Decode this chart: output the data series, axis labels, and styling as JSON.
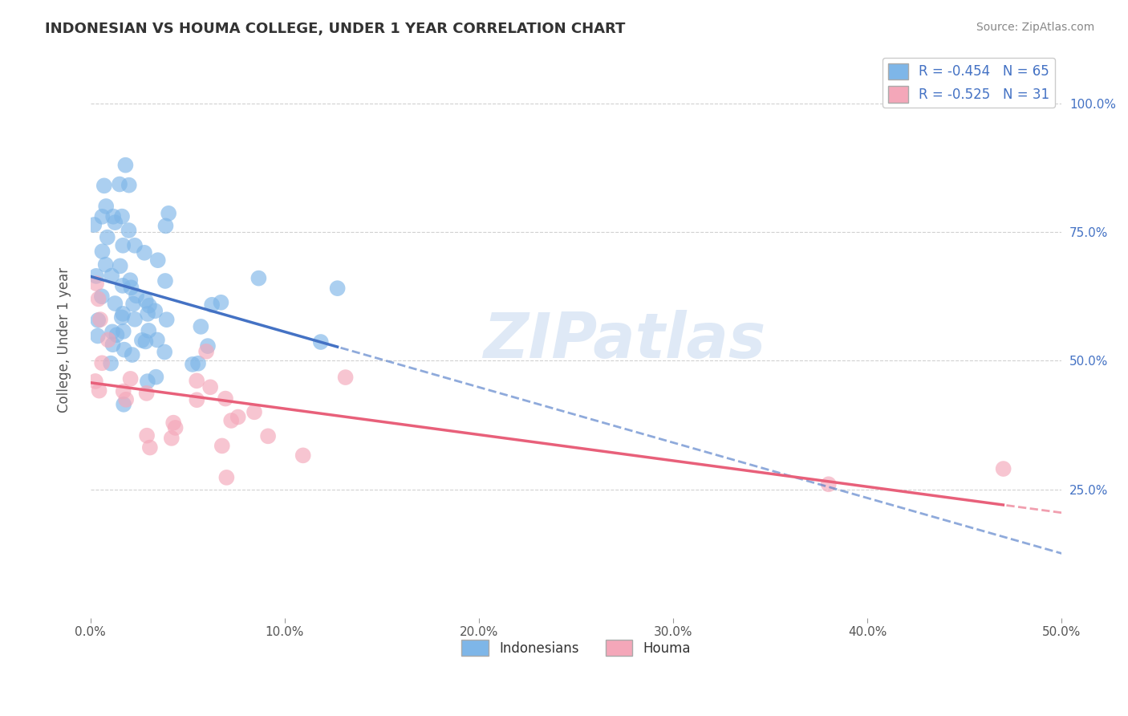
{
  "title": "INDONESIAN VS HOUMA COLLEGE, UNDER 1 YEAR CORRELATION CHART",
  "source": "Source: ZipAtlas.com",
  "ylabel": "College, Under 1 year",
  "xlim": [
    0.0,
    0.5
  ],
  "ylim": [
    0.0,
    1.08
  ],
  "xticks": [
    0.0,
    0.1,
    0.2,
    0.3,
    0.4,
    0.5
  ],
  "xticklabels": [
    "0.0%",
    "10.0%",
    "20.0%",
    "30.0%",
    "40.0%",
    "50.0%"
  ],
  "yticks_right": [
    0.25,
    0.5,
    0.75,
    1.0
  ],
  "ytick_labels_right": [
    "25.0%",
    "50.0%",
    "75.0%",
    "100.0%"
  ],
  "legend_r1": "-0.454",
  "legend_n1": "65",
  "legend_r2": "-0.525",
  "legend_n2": "31",
  "blue_color": "#7EB6E8",
  "blue_line_color": "#4472C4",
  "pink_color": "#F4A7B9",
  "pink_line_color": "#E8607A",
  "legend_label1": "Indonesians",
  "legend_label2": "Houma",
  "watermark": "ZIPatlas",
  "background_color": "#FFFFFF",
  "grid_color": "#CCCCCC",
  "title_color": "#333333",
  "source_color": "#888888",
  "label_color": "#4472C4"
}
